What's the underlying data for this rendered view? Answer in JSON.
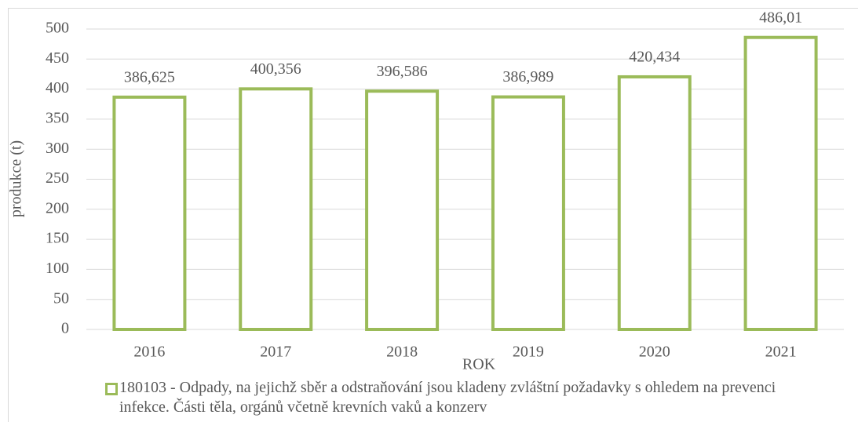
{
  "chart_data": {
    "type": "bar",
    "x_label": "ROK",
    "y_label": "produkce (t)",
    "categories": [
      "2016",
      "2017",
      "2018",
      "2019",
      "2020",
      "2021"
    ],
    "series": [
      {
        "name": "180103 - Odpady, na jejichž sběr a odstraňování jsou kladeny zvláštní požadavky s ohledem na prevenci infekce. Části těla, orgánů včetně krevních vaků a konzerv",
        "color": "#9bbb59",
        "values": [
          386.625,
          400.356,
          396.586,
          386.989,
          420.434,
          486.01
        ],
        "value_labels": [
          "386,625",
          "400,356",
          "396,586",
          "386,989",
          "420,434",
          "486,01"
        ]
      }
    ],
    "ylim": [
      0,
      500
    ],
    "yticks": [
      0,
      50,
      100,
      150,
      200,
      250,
      300,
      350,
      400,
      450,
      500
    ],
    "grid": true,
    "legend": "bottom"
  }
}
